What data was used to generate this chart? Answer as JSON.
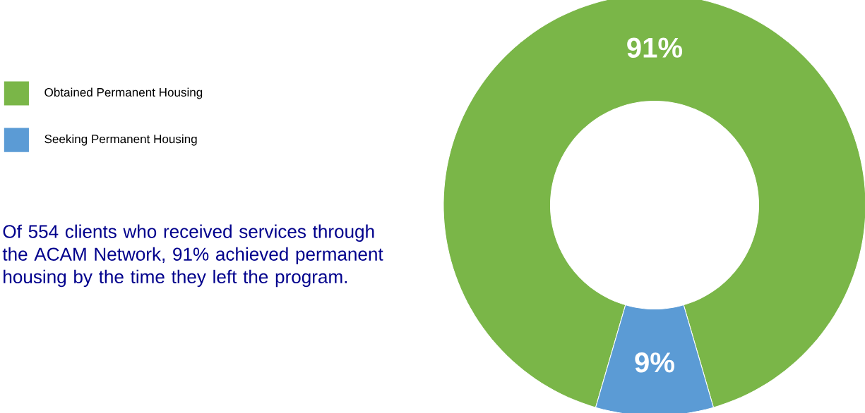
{
  "chart_data": {
    "type": "donut",
    "categories": [
      "Obtained Permanent Housing",
      "Seeking Permanent Housing"
    ],
    "values": [
      91,
      9
    ],
    "colors": [
      "#7ab648",
      "#5b9bd5"
    ],
    "value_labels": [
      "91%",
      "9%"
    ],
    "legend": "left",
    "annotations": [
      "Of 554 clients who received services through the ACAM Network, 91% achieved permanent housing by the time they left the program."
    ]
  }
}
